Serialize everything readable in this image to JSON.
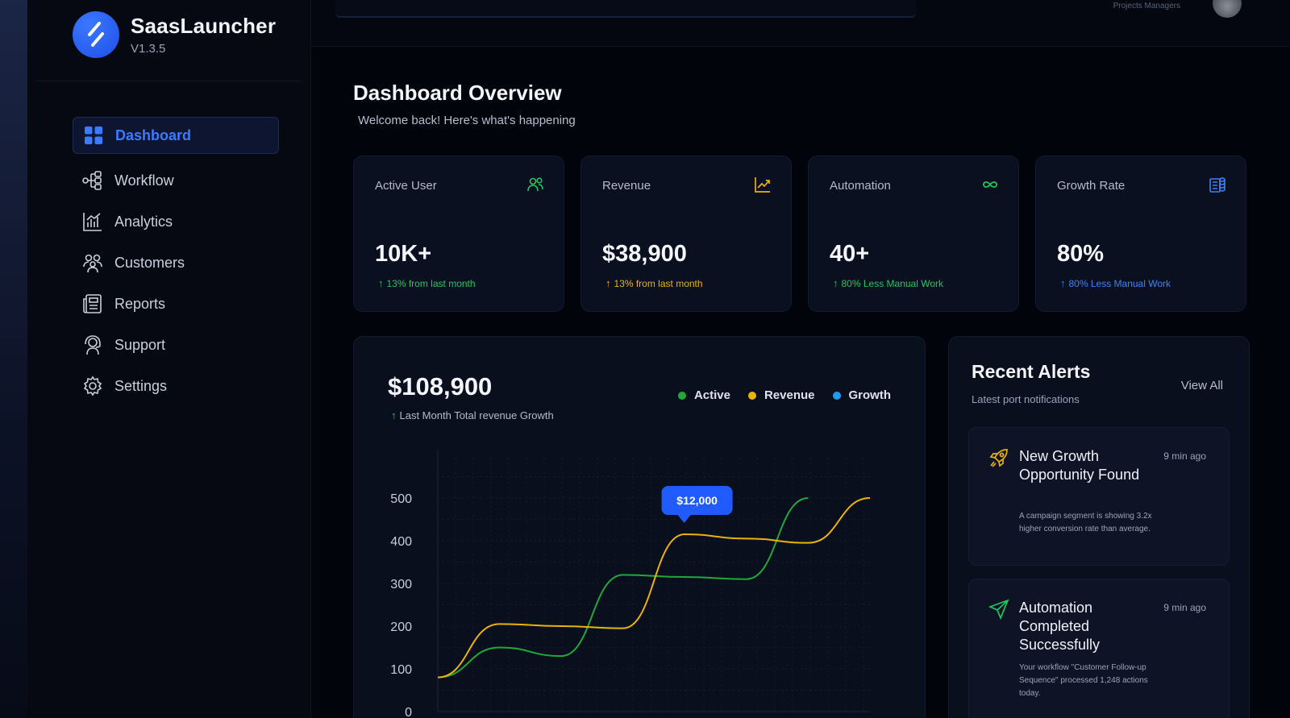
{
  "app": {
    "name": "SaasLauncher",
    "version": "V1.3.5"
  },
  "topbar": {
    "user_role": "Projects Managers"
  },
  "sidebar": {
    "items": [
      {
        "label": "Dashboard",
        "icon": "grid-icon",
        "active": true
      },
      {
        "label": "Workflow",
        "icon": "workflow-icon"
      },
      {
        "label": "Analytics",
        "icon": "analytics-icon"
      },
      {
        "label": "Customers",
        "icon": "users-icon"
      },
      {
        "label": "Reports",
        "icon": "reports-icon"
      },
      {
        "label": "Support",
        "icon": "support-icon"
      },
      {
        "label": "Settings",
        "icon": "gear-icon"
      }
    ]
  },
  "header": {
    "title": "Dashboard Overview",
    "subtitle": "Welcome back! Here's what's happening"
  },
  "stats": [
    {
      "label": "Active User",
      "value": "10K+",
      "delta": "13% from last month",
      "color": "#22c55e",
      "icon": "users-icon"
    },
    {
      "label": "Revenue",
      "value": "$38,900",
      "delta": "13% from last month",
      "color": "#eab308",
      "icon": "trend-chart-icon"
    },
    {
      "label": "Automation",
      "value": "40+",
      "delta": "80% Less Manual Work",
      "color": "#22c55e",
      "icon": "infinity-icon"
    },
    {
      "label": "Growth Rate",
      "value": "80%",
      "delta": "80% Less Manual Work",
      "color": "#3b82f6",
      "icon": "coins-icon"
    }
  ],
  "revenue": {
    "total": "$108,900",
    "caption": "Last Month Total revenue Growth"
  },
  "chart_data": {
    "type": "line",
    "ylim": [
      0,
      500
    ],
    "y_ticks": [
      "500",
      "400",
      "300",
      "200",
      "100",
      "0"
    ],
    "tooltip": "$12,000",
    "series": [
      {
        "name": "Active",
        "color": "#22a83a",
        "points": [
          [
            0,
            80
          ],
          [
            1,
            150
          ],
          [
            2,
            130
          ],
          [
            3,
            320
          ],
          [
            4,
            315
          ],
          [
            5,
            310
          ],
          [
            6,
            500
          ]
        ]
      },
      {
        "name": "Revenue",
        "color": "#eab308",
        "points": [
          [
            0,
            80
          ],
          [
            1,
            205
          ],
          [
            2,
            200
          ],
          [
            3,
            195
          ],
          [
            4,
            415
          ],
          [
            5,
            405
          ],
          [
            6,
            395
          ],
          [
            7,
            500
          ]
        ]
      },
      {
        "name": "Growth",
        "color": "#3b82f6",
        "points": []
      }
    ]
  },
  "alerts": {
    "title": "Recent Alerts",
    "subtitle": "Latest port notifications",
    "view_all": "View All",
    "items": [
      {
        "title": "New Growth Opportunity Found",
        "time": "9 min ago",
        "desc": "A campaign segment is showing 3.2x higher conversion rate than average.",
        "icon": "rocket-icon",
        "color": "#eab308"
      },
      {
        "title": "Automation Completed Successfully",
        "time": "9 min ago",
        "desc": "Your workflow \"Customer Follow-up Sequence\" processed 1,248 actions today.",
        "icon": "paper-plane-icon",
        "color": "#22c55e"
      }
    ]
  }
}
